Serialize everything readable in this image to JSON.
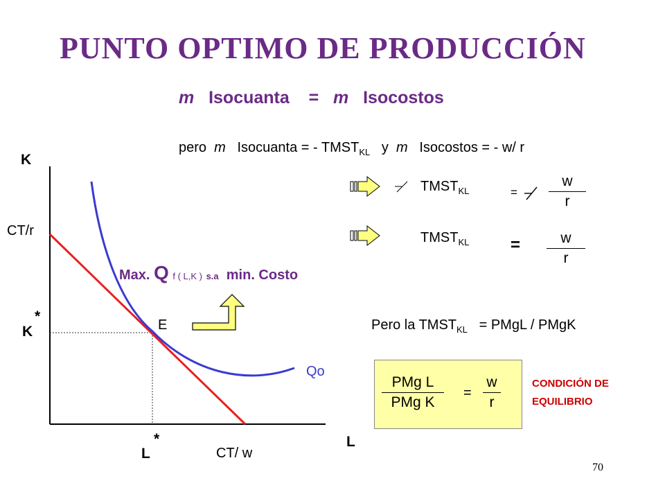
{
  "title": "PUNTO  OPTIMO  DE  PRODUCCIÓN",
  "subtitle": {
    "m1": "m",
    "iso1": "Isocuanta",
    "eq": "=",
    "m2": "m",
    "iso2": "Isocostos"
  },
  "line1": {
    "pre": "pero",
    "m1": "m",
    "iso1": "Isocuanta =  - TMST",
    "sub1": "KL",
    "mid": "y",
    "m2": "m",
    "iso2": "Isocostos  =  - w/ r"
  },
  "row1": {
    "lhs": "TMST",
    "sub": "KL",
    "eq": "=",
    "num": "w",
    "den": "r"
  },
  "row2": {
    "lhs": "TMST",
    "sub": "KL",
    "eq": "=",
    "num": "w",
    "den": "r"
  },
  "axis": {
    "k": "K",
    "l": "L",
    "ctr": "CT/r",
    "ctw": "CT/ w",
    "kstar": "K",
    "lstar": "L",
    "star": "*",
    "e": "E",
    "qo": "Qo"
  },
  "maxq": {
    "max": "Max.",
    "q": "Q",
    "f": "f ( L,K )",
    "sa": "s.a",
    "min": "min. Costo"
  },
  "pero": {
    "pre": "Pero la TMST",
    "sub": "KL",
    "post": "=  PMgL / PMgK"
  },
  "box": {
    "num1": "PMg L",
    "den1": "PMg K",
    "eq": "=",
    "num2": "w",
    "den2": "r"
  },
  "condicion": "CONDICIÓN  DE EQUILIBRIO",
  "page_number": "70",
  "colors": {
    "title": "#6a2a86",
    "budget_line": "#e82020",
    "isoquant": "#3a3ad0",
    "condition": "#cc0000",
    "box": "#ffffa8",
    "arrow": "#ffff80"
  }
}
